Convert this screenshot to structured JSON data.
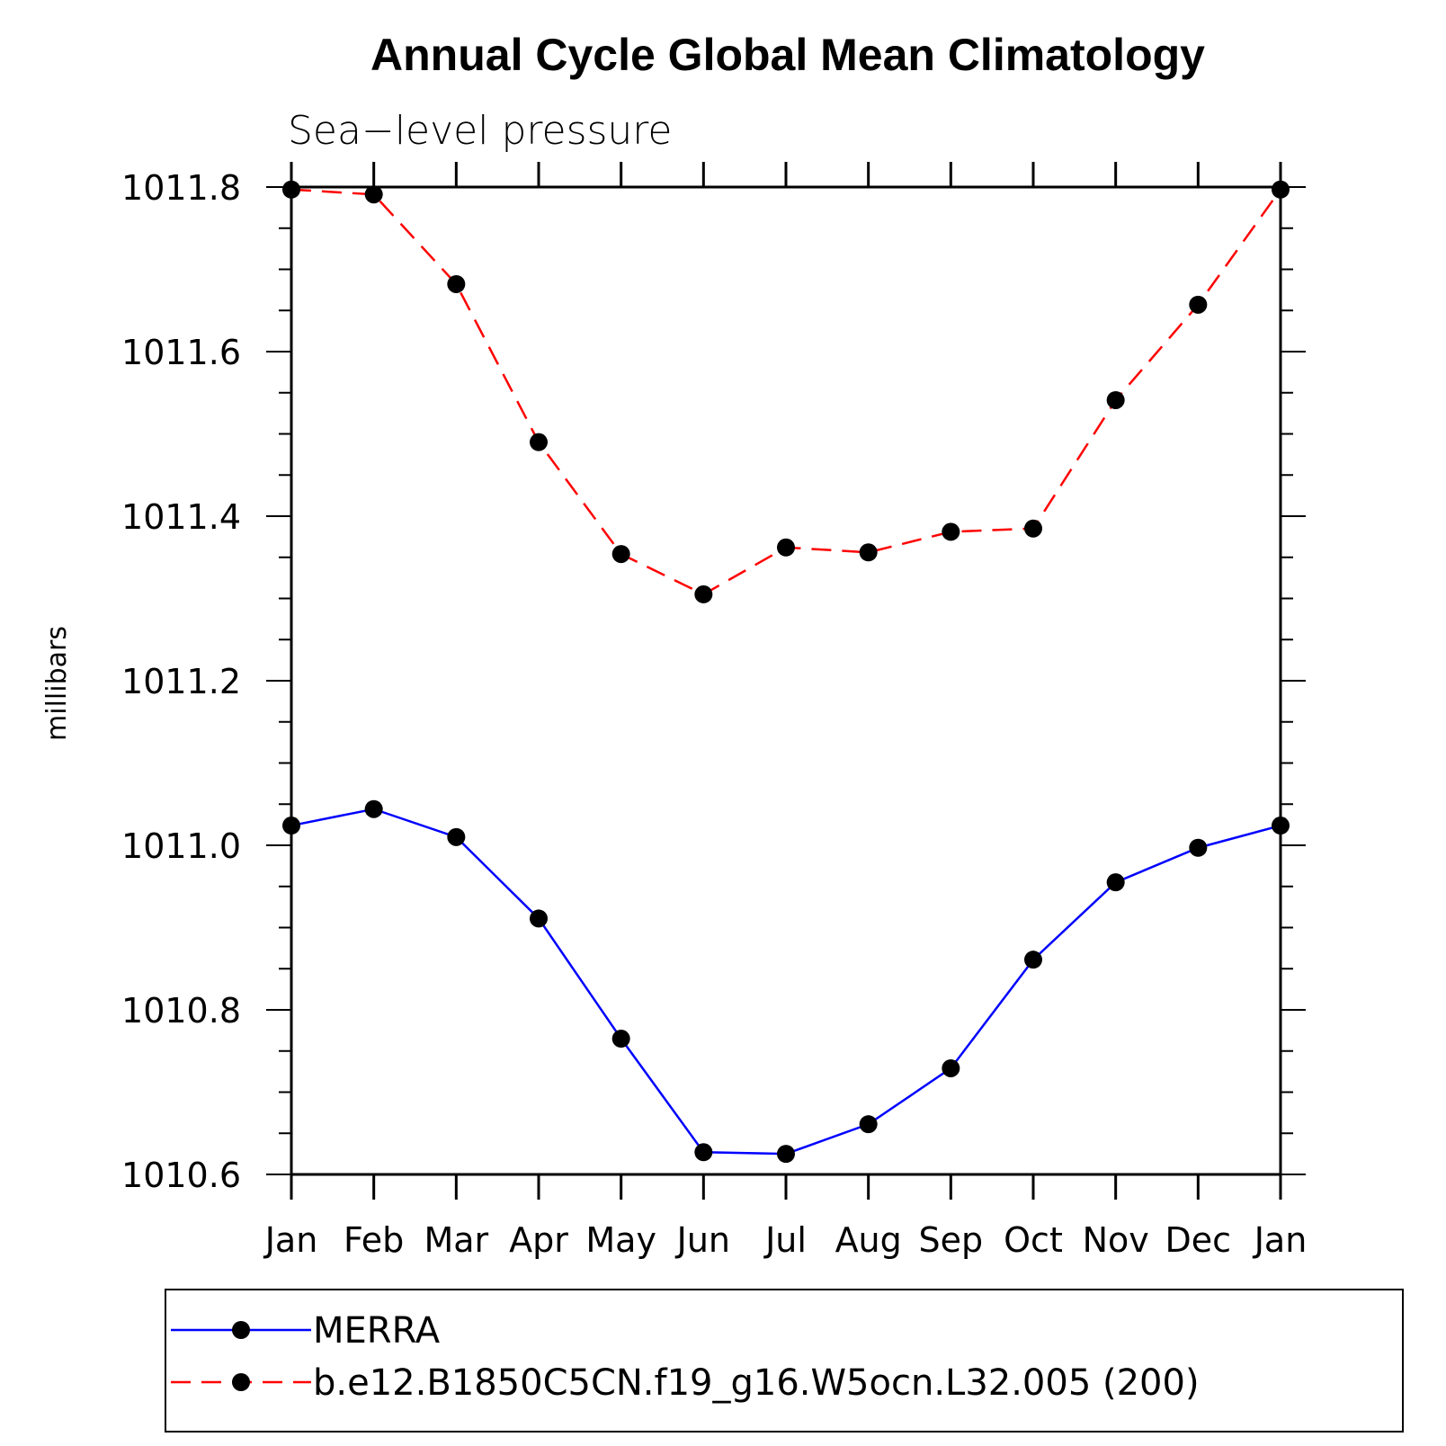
{
  "chart_data": {
    "type": "line",
    "title": "Annual Cycle Global Mean Climatology",
    "subtitle": "Sea−level pressure",
    "ylabel": "millibars",
    "xlabel": "",
    "categories": [
      "Jan",
      "Feb",
      "Mar",
      "Apr",
      "May",
      "Jun",
      "Jul",
      "Aug",
      "Sep",
      "Oct",
      "Nov",
      "Dec",
      "Jan"
    ],
    "ylim": [
      1010.6,
      1011.8
    ],
    "yticks": [
      "1010.6",
      "1010.8",
      "1011.0",
      "1011.2",
      "1011.4",
      "1011.6",
      "1011.8"
    ],
    "ytick_values": [
      1010.6,
      1010.8,
      1011.0,
      1011.2,
      1011.4,
      1011.6,
      1011.8
    ],
    "y_minor_step": 0.05,
    "legend_position": "bottom",
    "series": [
      {
        "name": "MERRA",
        "color": "#0000ff",
        "dash": "solid",
        "values": [
          1011.024,
          1011.044,
          1011.01,
          1010.911,
          1010.765,
          1010.627,
          1010.625,
          1010.661,
          1010.729,
          1010.861,
          1010.955,
          1010.997,
          1011.024
        ]
      },
      {
        "name": "b.e12.B1850C5CN.f19_g16.W5ocn.L32.005 (200)",
        "color": "#ff0000",
        "dash": "dashed",
        "values": [
          1011.797,
          1011.791,
          1011.682,
          1011.49,
          1011.354,
          1011.305,
          1011.362,
          1011.356,
          1011.381,
          1011.385,
          1011.541,
          1011.657,
          1011.797
        ]
      }
    ],
    "marker_color": "#000000"
  }
}
